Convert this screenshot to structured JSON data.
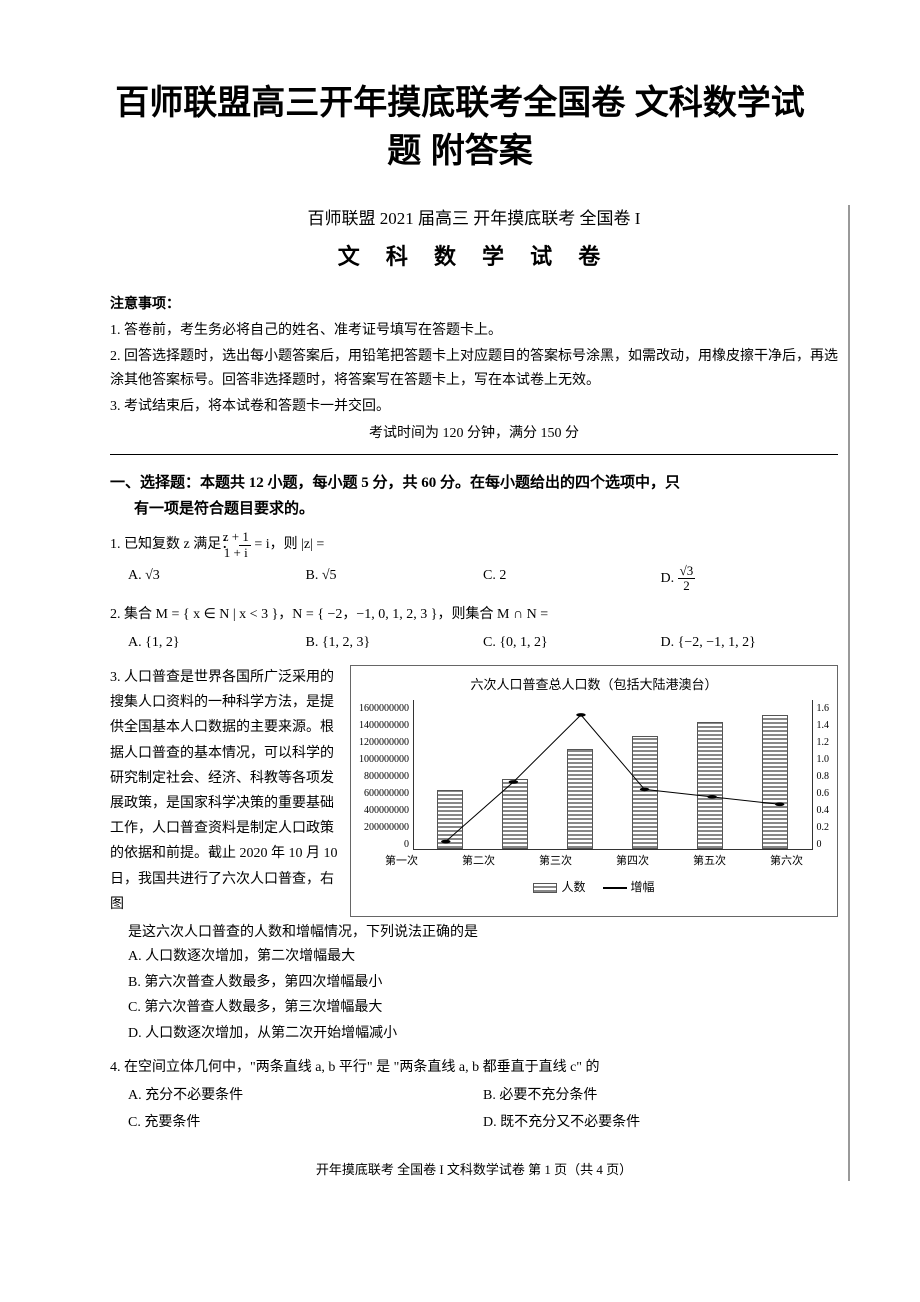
{
  "doc_title_line1": "百师联盟高三开年摸底联考全国卷 文科数学试",
  "doc_title_line2": "题 附答案",
  "header_line": "百师联盟 2021 届高三 开年摸底联考 全国卷 I",
  "exam_title": "文 科 数 学 试 卷",
  "notice_title": "注意事项：",
  "notice1": "1. 答卷前，考生务必将自己的姓名、准考证号填写在答题卡上。",
  "notice2": "2. 回答选择题时，选出每小题答案后，用铅笔把答题卡上对应题目的答案标号涂黑，如需改动，用橡皮擦干净后，再选涂其他答案标号。回答非选择题时，将答案写在答题卡上，写在本试卷上无效。",
  "notice3": "3. 考试结束后，将本试卷和答题卡一并交回。",
  "time_line": "考试时间为 120 分钟，满分 150 分",
  "section1_title_a": "一、选择题：本题共 12 小题，每小题 5 分，共 60 分。在每小题给出的四个选项中，只",
  "section1_title_b": "有一项是符合题目要求的。",
  "q1": {
    "text": "1. 已知复数 z 满足：",
    "frac_num": "z + 1",
    "frac_den": "1 + i",
    "tail": " = i，则 |z| =",
    "A": "A. √3",
    "B": "B. √5",
    "C": "C. 2",
    "D_pre": "D. ",
    "D_num": "√3",
    "D_den": "2"
  },
  "q2": {
    "text": "2. 集合 M = { x ∈ N | x < 3 }，N = { −2，−1, 0, 1, 2, 3 }，则集合 M ∩ N =",
    "A": "A. {1, 2}",
    "B": "B. {1, 2, 3}",
    "C": "C. {0, 1, 2}",
    "D": "D. {−2, −1, 1, 2}"
  },
  "q3": {
    "text_left": "3. 人口普查是世界各国所广泛采用的搜集人口资料的一种科学方法，是提供全国基本人口数据的主要来源。根据人口普查的基本情况，可以科学的研究制定社会、经济、科教等各项发展政策，是国家科学决策的重要基础工作，人口普查资料是制定人口政策的依据和前提。截止 2020 年 10 月 10 日，我国共进行了六次人口普查，右图",
    "text_below": "是这六次人口普查的人数和增幅情况，下列说法正确的是",
    "A": "A. 人口数逐次增加，第二次增幅最大",
    "B": "B. 第六次普查人数最多，第四次增幅最小",
    "C": "C. 第六次普查人数最多，第三次增幅最大",
    "D": "D. 人口数逐次增加，从第二次开始增幅减小"
  },
  "chart": {
    "title": "六次人口普查总人口数（包括大陆港澳台）",
    "y_left": [
      "1600000000",
      "1400000000",
      "1200000000",
      "1000000000",
      "800000000",
      "600000000",
      "400000000",
      "200000000",
      "0"
    ],
    "y_right": [
      "1.6",
      "1.4",
      "1.2",
      "1.0",
      "0.8",
      "0.6",
      "0.4",
      "0.2",
      "0"
    ],
    "x_labels": [
      "第一次",
      "第二次",
      "第三次",
      "第四次",
      "第五次",
      "第六次"
    ],
    "bar_heights_pct": [
      40,
      47,
      67,
      76,
      85,
      90
    ],
    "line_points": [
      [
        8,
        95
      ],
      [
        25,
        55
      ],
      [
        42,
        10
      ],
      [
        58,
        60
      ],
      [
        75,
        65
      ],
      [
        92,
        70
      ]
    ],
    "legend_pop": "人数",
    "legend_inc": "增幅"
  },
  "q4": {
    "text": "4. 在空间立体几何中，\"两条直线 a, b 平行\" 是 \"两条直线 a, b 都垂直于直线 c\" 的",
    "A": "A. 充分不必要条件",
    "B": "B. 必要不充分条件",
    "C": "C. 充要条件",
    "D": "D. 既不充分又不必要条件"
  },
  "footer": "开年摸底联考 全国卷 I 文科数学试卷 第 1 页（共 4 页）"
}
